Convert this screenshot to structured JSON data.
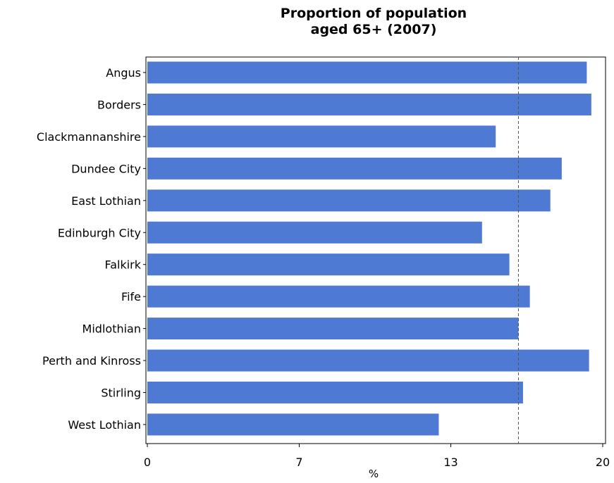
{
  "chart_data": {
    "type": "bar",
    "orientation": "horizontal",
    "title_lines": [
      "Proportion of population",
      "aged 65+ (2007)"
    ],
    "xlabel": "%",
    "ylabel": "",
    "xlim": [
      0,
      20
    ],
    "x_ticks": [
      "0",
      "7",
      "13",
      "20"
    ],
    "x_tick_values": [
      0,
      6.67,
      13.33,
      20
    ],
    "reference_line": {
      "value": 16.3,
      "style": "dashed"
    },
    "bar_color": "#4f7ad4",
    "grid": false,
    "legend": "none",
    "categories": [
      "Angus",
      "Borders",
      "Clackmannanshire",
      "Dundee City",
      "East Lothian",
      "Edinburgh City",
      "Falkirk",
      "Fife",
      "Midlothian",
      "Perth and Kinross",
      "Stirling",
      "West Lothian"
    ],
    "values": [
      19.3,
      19.5,
      15.3,
      18.2,
      17.7,
      14.7,
      15.9,
      16.8,
      16.3,
      19.4,
      16.5,
      12.8
    ]
  }
}
